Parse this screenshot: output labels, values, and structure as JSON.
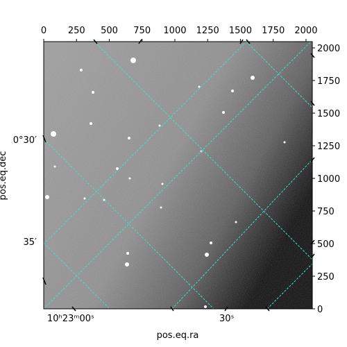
{
  "chart_data": {
    "type": "image",
    "xlabel": "pos.eq.ra",
    "ylabel": "pos.eq.dec",
    "pixel_axes": {
      "x": {
        "range": [
          0,
          2048
        ],
        "ticks": [
          0,
          250,
          500,
          750,
          1000,
          1250,
          1500,
          1750,
          2000
        ]
      },
      "y": {
        "range": [
          0,
          2048
        ],
        "ticks": [
          0,
          250,
          500,
          750,
          1000,
          1250,
          1500,
          1750,
          2000
        ]
      }
    },
    "world_ticks": {
      "ra": [
        "10ʰ23ᵐ00ˢ",
        "30ˢ"
      ],
      "dec": [
        "0°30′",
        "35′"
      ]
    },
    "grid": true,
    "grid_color": "#40e0d0",
    "colormap": "gray"
  }
}
